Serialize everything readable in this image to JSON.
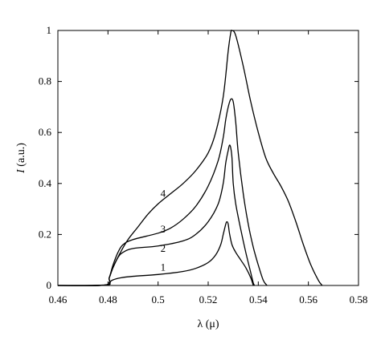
{
  "chart_data": {
    "type": "line",
    "title": "",
    "xlabel": "λ (μ)",
    "ylabel_symbol": "I",
    "ylabel_unit": "(a.u.)",
    "xlim": [
      0.46,
      0.58
    ],
    "ylim": [
      0,
      1
    ],
    "xticks": [
      "0.46",
      "0.48",
      "0.5",
      "0.52",
      "0.54",
      "0.56",
      "0.58"
    ],
    "yticks": [
      "0",
      "0.2",
      "0.4",
      "0.6",
      "0.8",
      "1"
    ],
    "grid": false,
    "legend": "none",
    "series": [
      {
        "name": "1",
        "label_at": [
          0.502,
          0.07
        ],
        "points": [
          [
            0.46,
            0
          ],
          [
            0.479,
            0.002
          ],
          [
            0.4805,
            0.012
          ],
          [
            0.482,
            0.022
          ],
          [
            0.485,
            0.03
          ],
          [
            0.49,
            0.036
          ],
          [
            0.5,
            0.043
          ],
          [
            0.51,
            0.055
          ],
          [
            0.515,
            0.067
          ],
          [
            0.52,
            0.09
          ],
          [
            0.523,
            0.12
          ],
          [
            0.525,
            0.16
          ],
          [
            0.526,
            0.2
          ],
          [
            0.527,
            0.24
          ],
          [
            0.5275,
            0.25
          ],
          [
            0.528,
            0.24
          ],
          [
            0.5285,
            0.205
          ],
          [
            0.5295,
            0.16
          ],
          [
            0.531,
            0.13
          ],
          [
            0.533,
            0.1
          ],
          [
            0.535,
            0.07
          ],
          [
            0.537,
            0.03
          ],
          [
            0.538,
            0
          ]
        ]
      },
      {
        "name": "2",
        "label_at": [
          0.502,
          0.145
        ],
        "points": [
          [
            0.46,
            0
          ],
          [
            0.479,
            0.002
          ],
          [
            0.4805,
            0.03
          ],
          [
            0.482,
            0.07
          ],
          [
            0.484,
            0.11
          ],
          [
            0.486,
            0.13
          ],
          [
            0.49,
            0.145
          ],
          [
            0.5,
            0.155
          ],
          [
            0.51,
            0.175
          ],
          [
            0.515,
            0.2
          ],
          [
            0.52,
            0.25
          ],
          [
            0.524,
            0.32
          ],
          [
            0.526,
            0.4
          ],
          [
            0.527,
            0.48
          ],
          [
            0.528,
            0.53
          ],
          [
            0.5285,
            0.55
          ],
          [
            0.529,
            0.54
          ],
          [
            0.5295,
            0.5
          ],
          [
            0.53,
            0.4
          ],
          [
            0.531,
            0.32
          ],
          [
            0.533,
            0.22
          ],
          [
            0.535,
            0.13
          ],
          [
            0.537,
            0.05
          ],
          [
            0.538,
            0.01
          ],
          [
            0.5385,
            0
          ]
        ]
      },
      {
        "name": "3",
        "label_at": [
          0.502,
          0.22
        ],
        "points": [
          [
            0.46,
            0
          ],
          [
            0.479,
            0.002
          ],
          [
            0.4805,
            0.03
          ],
          [
            0.482,
            0.08
          ],
          [
            0.484,
            0.13
          ],
          [
            0.486,
            0.16
          ],
          [
            0.49,
            0.18
          ],
          [
            0.5,
            0.205
          ],
          [
            0.505,
            0.225
          ],
          [
            0.51,
            0.26
          ],
          [
            0.515,
            0.31
          ],
          [
            0.52,
            0.39
          ],
          [
            0.524,
            0.49
          ],
          [
            0.526,
            0.58
          ],
          [
            0.527,
            0.65
          ],
          [
            0.528,
            0.7
          ],
          [
            0.529,
            0.73
          ],
          [
            0.53,
            0.72
          ],
          [
            0.531,
            0.64
          ],
          [
            0.532,
            0.52
          ],
          [
            0.534,
            0.36
          ],
          [
            0.536,
            0.24
          ],
          [
            0.538,
            0.15
          ],
          [
            0.54,
            0.08
          ],
          [
            0.542,
            0.02
          ],
          [
            0.5435,
            0
          ]
        ]
      },
      {
        "name": "4",
        "label_at": [
          0.502,
          0.36
        ],
        "points": [
          [
            0.46,
            0
          ],
          [
            0.479,
            0.002
          ],
          [
            0.4805,
            0.03
          ],
          [
            0.482,
            0.07
          ],
          [
            0.485,
            0.13
          ],
          [
            0.488,
            0.18
          ],
          [
            0.492,
            0.23
          ],
          [
            0.496,
            0.28
          ],
          [
            0.5,
            0.32
          ],
          [
            0.505,
            0.36
          ],
          [
            0.51,
            0.4
          ],
          [
            0.515,
            0.45
          ],
          [
            0.52,
            0.52
          ],
          [
            0.523,
            0.6
          ],
          [
            0.526,
            0.74
          ],
          [
            0.528,
            0.92
          ],
          [
            0.529,
            0.99
          ],
          [
            0.5295,
            1.0
          ],
          [
            0.531,
            0.98
          ],
          [
            0.534,
            0.86
          ],
          [
            0.537,
            0.72
          ],
          [
            0.54,
            0.6
          ],
          [
            0.543,
            0.5
          ],
          [
            0.546,
            0.44
          ],
          [
            0.549,
            0.39
          ],
          [
            0.552,
            0.33
          ],
          [
            0.555,
            0.25
          ],
          [
            0.558,
            0.16
          ],
          [
            0.561,
            0.08
          ],
          [
            0.564,
            0.02
          ],
          [
            0.5655,
            0
          ]
        ]
      }
    ]
  }
}
